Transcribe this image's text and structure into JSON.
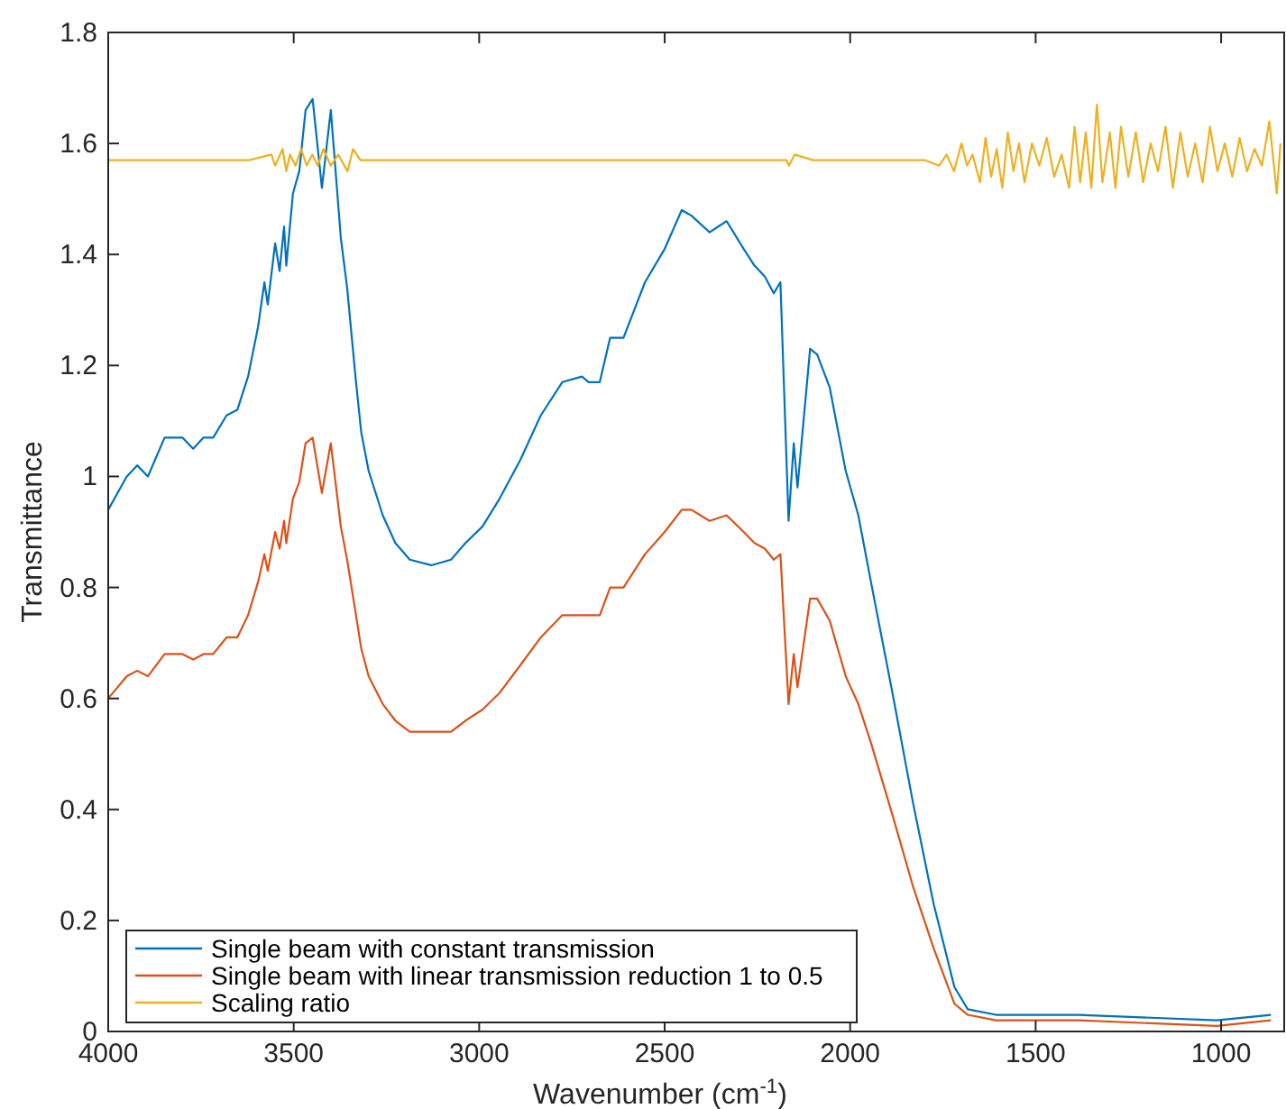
{
  "chart_data": {
    "type": "line",
    "xlabel": "Wavenumber (cm$^{-1}$)",
    "ylabel": "Transmittance",
    "xlim": [
      4000,
      830
    ],
    "xticks": [
      4000,
      3500,
      3000,
      2500,
      2000,
      1500,
      1000
    ],
    "ylim": [
      0,
      1.8
    ],
    "yticks": [
      0,
      0.2,
      0.4,
      0.6,
      0.8,
      1,
      1.2,
      1.4,
      1.6,
      1.8
    ],
    "grid": false,
    "legend": "bottom left",
    "line_style": "solid",
    "marker": "none",
    "x": [
      4000,
      3950,
      3922,
      3893,
      3848,
      3800,
      3771,
      3743,
      3717,
      3681,
      3652,
      3623,
      3596,
      3579,
      3570,
      3550,
      3538,
      3526,
      3520,
      3502,
      3485,
      3468,
      3449,
      3424,
      3400,
      3373,
      3356,
      3332,
      3318,
      3298,
      3260,
      3226,
      3187,
      3129,
      3076,
      3037,
      2991,
      2945,
      2889,
      2834,
      2776,
      2723,
      2705,
      2675,
      2647,
      2611,
      2553,
      2500,
      2454,
      2428,
      2379,
      2333,
      2287,
      2258,
      2230,
      2206,
      2188,
      2166,
      2152,
      2142,
      2108,
      2089,
      2055,
      2012,
      1978,
      1944,
      1886,
      1830,
      1775,
      1719,
      1683,
      1607,
      1384,
      1012,
      866
    ],
    "series": [
      {
        "name": "Single beam with constant transmission",
        "color": "#0072bd",
        "values": [
          0.94,
          1.0,
          1.02,
          1.0,
          1.07,
          1.07,
          1.05,
          1.07,
          1.07,
          1.11,
          1.12,
          1.18,
          1.27,
          1.35,
          1.31,
          1.42,
          1.37,
          1.45,
          1.38,
          1.51,
          1.55,
          1.66,
          1.68,
          1.52,
          1.66,
          1.43,
          1.34,
          1.17,
          1.08,
          1.01,
          0.93,
          0.88,
          0.85,
          0.84,
          0.85,
          0.88,
          0.91,
          0.96,
          1.03,
          1.11,
          1.17,
          1.18,
          1.17,
          1.17,
          1.25,
          1.25,
          1.35,
          1.41,
          1.48,
          1.47,
          1.44,
          1.46,
          1.41,
          1.38,
          1.36,
          1.33,
          1.35,
          0.92,
          1.06,
          0.98,
          1.23,
          1.22,
          1.16,
          1.01,
          0.93,
          0.81,
          0.61,
          0.41,
          0.23,
          0.08,
          0.04,
          0.03,
          0.03,
          0.02,
          0.03
        ]
      },
      {
        "name": "Single beam with linear transmission reduction 1 to 0.5",
        "color": "#d95319",
        "values": [
          0.6,
          0.64,
          0.65,
          0.64,
          0.68,
          0.68,
          0.67,
          0.68,
          0.68,
          0.71,
          0.71,
          0.75,
          0.81,
          0.86,
          0.83,
          0.9,
          0.87,
          0.92,
          0.88,
          0.96,
          0.99,
          1.06,
          1.07,
          0.97,
          1.06,
          0.91,
          0.85,
          0.75,
          0.69,
          0.64,
          0.59,
          0.56,
          0.54,
          0.54,
          0.54,
          0.56,
          0.58,
          0.61,
          0.66,
          0.71,
          0.75,
          0.75,
          0.75,
          0.75,
          0.8,
          0.8,
          0.86,
          0.9,
          0.94,
          0.94,
          0.92,
          0.93,
          0.9,
          0.88,
          0.87,
          0.85,
          0.86,
          0.59,
          0.68,
          0.62,
          0.78,
          0.78,
          0.74,
          0.64,
          0.59,
          0.52,
          0.39,
          0.26,
          0.15,
          0.05,
          0.03,
          0.02,
          0.02,
          0.01,
          0.02
        ]
      },
      {
        "name": "Scaling ratio",
        "color": "#edb120",
        "x": [
          4000,
          3900,
          3800,
          3700,
          3620,
          3560,
          3550,
          3530,
          3520,
          3510,
          3495,
          3480,
          3465,
          3450,
          3435,
          3420,
          3400,
          3380,
          3355,
          3340,
          3320,
          3200,
          3000,
          2500,
          2172,
          2165,
          2150,
          2100,
          1800,
          1760,
          1740,
          1720,
          1700,
          1685,
          1670,
          1650,
          1635,
          1620,
          1605,
          1590,
          1575,
          1560,
          1545,
          1530,
          1510,
          1490,
          1470,
          1450,
          1430,
          1410,
          1395,
          1380,
          1365,
          1350,
          1335,
          1320,
          1300,
          1285,
          1270,
          1250,
          1230,
          1210,
          1190,
          1170,
          1150,
          1130,
          1110,
          1090,
          1070,
          1050,
          1030,
          1010,
          990,
          970,
          950,
          930,
          910,
          890,
          870,
          850,
          840
        ],
        "values": [
          1.57,
          1.57,
          1.57,
          1.57,
          1.57,
          1.58,
          1.56,
          1.59,
          1.55,
          1.58,
          1.56,
          1.59,
          1.56,
          1.58,
          1.56,
          1.59,
          1.56,
          1.58,
          1.55,
          1.59,
          1.57,
          1.57,
          1.57,
          1.57,
          1.57,
          1.56,
          1.58,
          1.57,
          1.57,
          1.56,
          1.58,
          1.55,
          1.6,
          1.56,
          1.58,
          1.53,
          1.61,
          1.54,
          1.59,
          1.52,
          1.62,
          1.55,
          1.6,
          1.53,
          1.6,
          1.56,
          1.61,
          1.54,
          1.58,
          1.52,
          1.63,
          1.53,
          1.62,
          1.52,
          1.67,
          1.53,
          1.62,
          1.52,
          1.63,
          1.54,
          1.62,
          1.53,
          1.6,
          1.55,
          1.63,
          1.52,
          1.62,
          1.54,
          1.6,
          1.53,
          1.63,
          1.55,
          1.6,
          1.54,
          1.61,
          1.55,
          1.59,
          1.56,
          1.64,
          1.51,
          1.6
        ]
      }
    ]
  }
}
